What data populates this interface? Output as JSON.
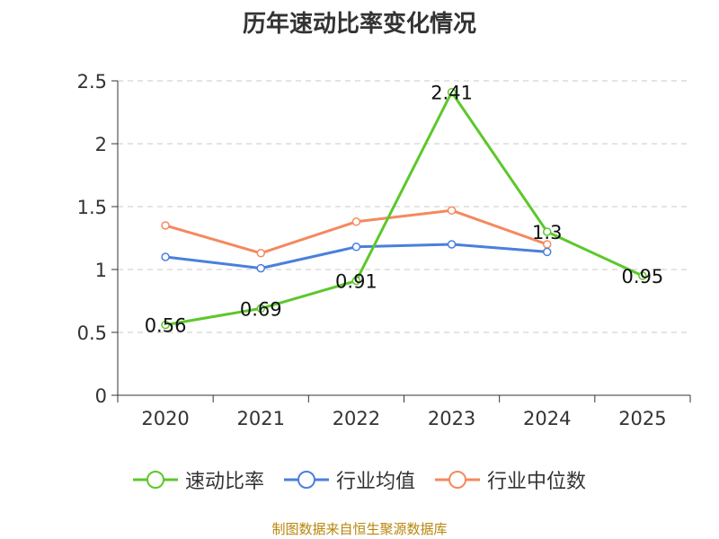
{
  "chart_data": {
    "type": "line",
    "title": "历年速动比率变化情况",
    "categories": [
      "2020",
      "2021",
      "2022",
      "2023",
      "2024",
      "2025"
    ],
    "ylim": [
      0,
      2.5
    ],
    "yticks": [
      "0",
      "0.5",
      "1",
      "1.5",
      "2",
      "2.5"
    ],
    "grid": true,
    "legend_position": "bottom",
    "series": [
      {
        "name": "速动比率",
        "color": "#5cc82a",
        "labels": true,
        "values": [
          0.56,
          0.69,
          0.91,
          2.41,
          1.3,
          0.95
        ],
        "value_labels": [
          "0.56",
          "0.69",
          "0.91",
          "2.41",
          "1.3",
          "0.95"
        ]
      },
      {
        "name": "行业均值",
        "color": "#4a7fdd",
        "labels": false,
        "values": [
          1.1,
          1.01,
          1.18,
          1.2,
          1.14,
          null
        ]
      },
      {
        "name": "行业中位数",
        "color": "#f4895f",
        "labels": false,
        "values": [
          1.35,
          1.13,
          1.38,
          1.47,
          1.2,
          null
        ]
      }
    ]
  },
  "footer": {
    "source": "制图数据来自恒生聚源数据库"
  }
}
